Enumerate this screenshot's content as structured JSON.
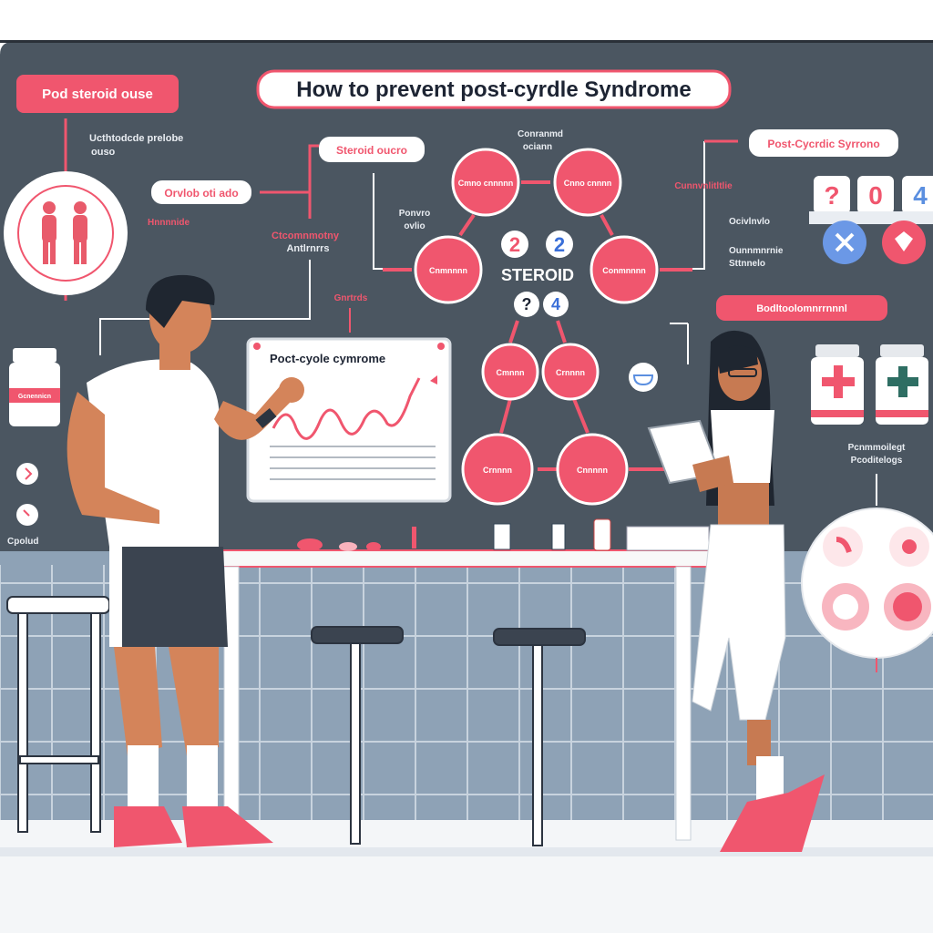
{
  "colors": {
    "board": "#4b5661",
    "accent": "#f0566e",
    "tile": "#8ea2b6",
    "blue": "#5b8fe0"
  },
  "board": {
    "title": "How to prevent post-cyrdle Syndrome",
    "top_left_badge": "Pod steroid ouse",
    "note_left": "Ucthtodcde prelobe",
    "note_left_2": "ouso",
    "left_pill": "Orvlob oti ado",
    "left_small": "Hnnnnide",
    "mid_pill": "Steroid oucro",
    "mid_label_1": "Ctcomnmotny",
    "mid_label_2": "Antlrnrrs",
    "mid_label_3": "Gnrtrds",
    "top_center_label_1": "Conranmd",
    "top_center_label_2": "ociann",
    "side_label_1": "Ponvro",
    "side_label_2": "ovlio",
    "center_word": "STEROID",
    "numbers": [
      "2",
      "2",
      "?",
      "4"
    ],
    "right_badge": "Post-Cycrdic Syrrono",
    "right_label": "Cunnvnlitltlie",
    "right_cards": [
      "?",
      "0",
      "4"
    ],
    "right_note_1": "Ocivlnvlo",
    "right_note_2": "Ounnmnrnie",
    "right_note_3": "Sttnnelo",
    "right_bottom_pill": "Bodltoolomnrrnnnl",
    "bottom_right_label_1": "Pcnmmoilegt",
    "bottom_right_label_2": "Pcoditelogs",
    "left_bottom_label": "Cpolud",
    "bottle_label": "Gcnennicn",
    "chart_board_title": "Poct-cyole cymrome",
    "flow_nodes": [
      "Cmno cnnnnn",
      "Cnno cnnnn",
      "Cnmnnnn",
      "Conmnnnn",
      "Cmnnn",
      "Crnnnn",
      "Crnnnn",
      "Cnnnnn"
    ]
  },
  "icons": [
    "human-body-icon",
    "pill-bottle-icon",
    "close-icon",
    "diamond-icon",
    "trend-chart-icon",
    "medical-cross-icon"
  ]
}
